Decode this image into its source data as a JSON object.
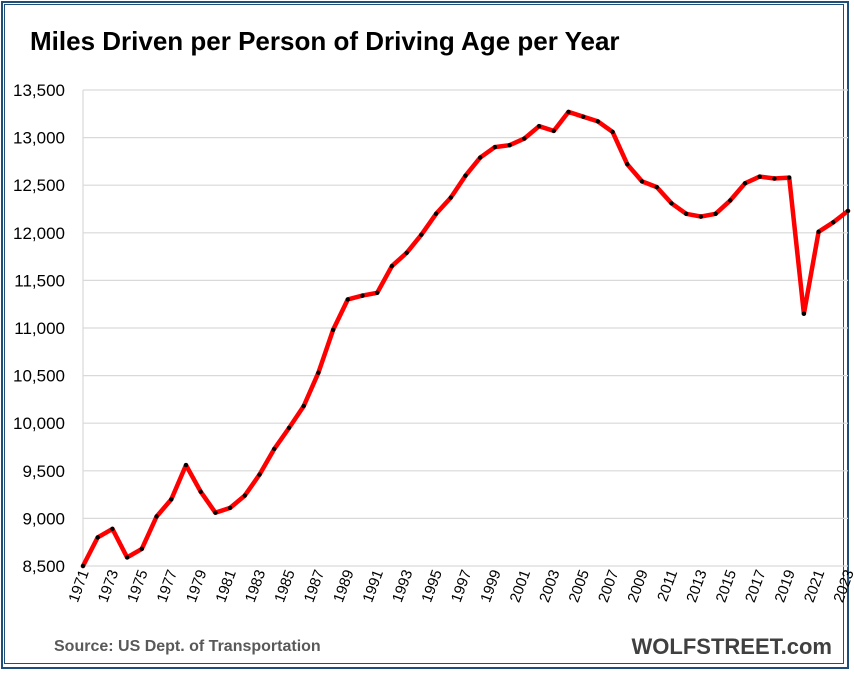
{
  "title": "Miles Driven per Person of Driving Age per Year",
  "source": "Source: US Dept. of Transportation",
  "brand": "WOLFSTREET.com",
  "colors": {
    "line": "#ff0000",
    "marker": "#000000",
    "grid": "#d9d9d9",
    "frame": "#1f4e79"
  },
  "chart_data": {
    "type": "line",
    "title": "Miles Driven per Person of Driving Age per Year",
    "xlabel": "",
    "ylabel": "",
    "ylim": [
      8500,
      13500
    ],
    "xlim": [
      1971,
      2023
    ],
    "grid": true,
    "legend": "none",
    "yticks": [
      "8,500",
      "9,000",
      "9,500",
      "10,000",
      "10,500",
      "11,000",
      "11,500",
      "12,000",
      "12,500",
      "13,000",
      "13,500"
    ],
    "xticks": [
      "1971",
      "1973",
      "1975",
      "1977",
      "1979",
      "1981",
      "1983",
      "1985",
      "1987",
      "1989",
      "1991",
      "1993",
      "1995",
      "1997",
      "1999",
      "2001",
      "2003",
      "2005",
      "2007",
      "2009",
      "2011",
      "2013",
      "2015",
      "2017",
      "2019",
      "2021",
      "2023"
    ],
    "x": [
      1971,
      1972,
      1973,
      1974,
      1975,
      1976,
      1977,
      1978,
      1979,
      1980,
      1981,
      1982,
      1983,
      1984,
      1985,
      1986,
      1987,
      1988,
      1989,
      1990,
      1991,
      1992,
      1993,
      1994,
      1995,
      1996,
      1997,
      1998,
      1999,
      2000,
      2001,
      2002,
      2003,
      2004,
      2005,
      2006,
      2007,
      2008,
      2009,
      2010,
      2011,
      2012,
      2013,
      2014,
      2015,
      2016,
      2017,
      2018,
      2019,
      2020,
      2021,
      2022,
      2023
    ],
    "values": [
      8500,
      8800,
      8890,
      8590,
      8680,
      9020,
      9200,
      9560,
      9280,
      9060,
      9110,
      9240,
      9460,
      9730,
      9950,
      10180,
      10530,
      10980,
      11300,
      11340,
      11370,
      11650,
      11790,
      11980,
      12200,
      12370,
      12600,
      12790,
      12900,
      12920,
      12990,
      13120,
      13070,
      13270,
      13220,
      13170,
      13060,
      12720,
      12540,
      12480,
      12310,
      12200,
      12170,
      12200,
      12340,
      12520,
      12590,
      12570,
      12580,
      11150,
      12010,
      12110,
      12230
    ]
  }
}
